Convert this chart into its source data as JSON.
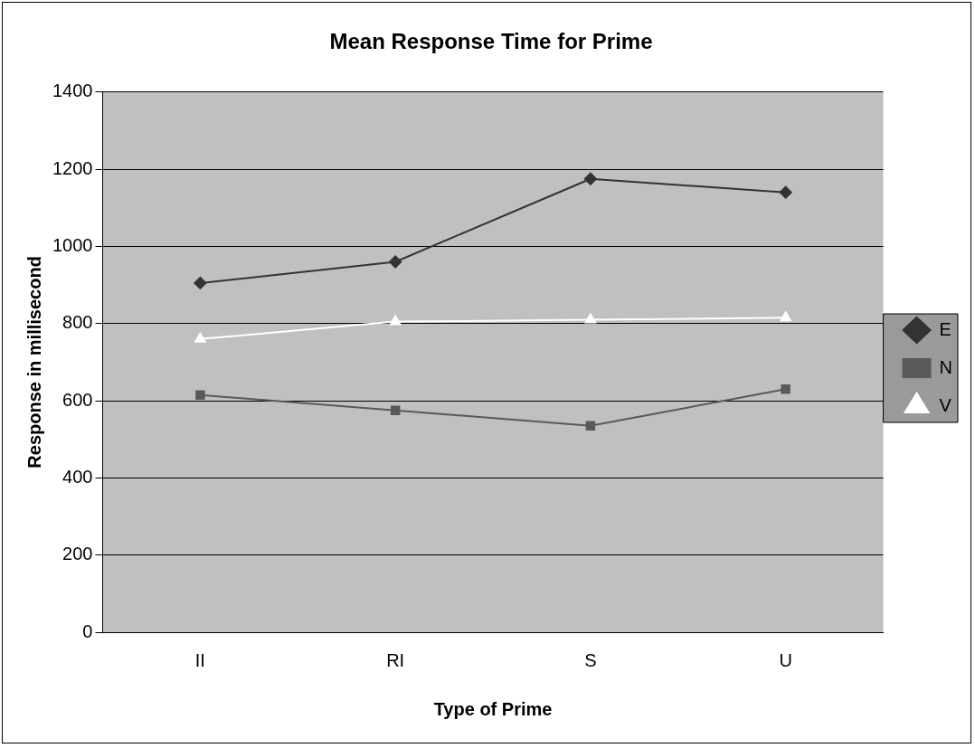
{
  "chart_data": {
    "type": "line",
    "title": "Mean Response Time for Prime",
    "xlabel": "Type of Prime",
    "ylabel": "Response in millisecond",
    "categories": [
      "II",
      "RI",
      "S",
      "U"
    ],
    "series": [
      {
        "name": "E",
        "color": "#333333",
        "marker": "diamond",
        "values": [
          905,
          960,
          1175,
          1140
        ]
      },
      {
        "name": "N",
        "color": "#595959",
        "marker": "square",
        "values": [
          615,
          575,
          535,
          630
        ]
      },
      {
        "name": "V",
        "color": "#ffffff",
        "marker": "triangle",
        "values": [
          760,
          805,
          810,
          815
        ]
      }
    ],
    "ylim": [
      0,
      1400
    ],
    "yticks": [
      0,
      200,
      400,
      600,
      800,
      1000,
      1200,
      1400
    ],
    "grid": "y",
    "legend": "right"
  }
}
